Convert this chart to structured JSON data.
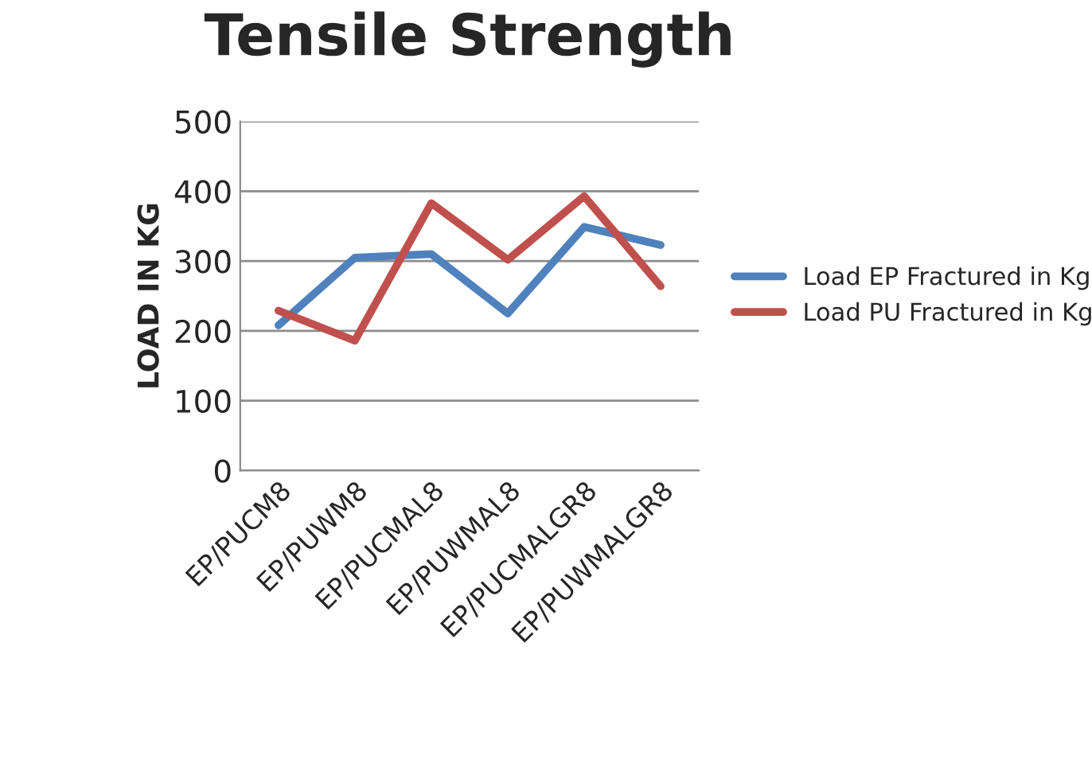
{
  "chart_data": {
    "type": "line",
    "title": "Tensile Strength",
    "ylabel": "LOAD IN KG",
    "categories": [
      "EP/PUCM8",
      "EP/PUWM8",
      "EP/PUCMAL8",
      "EP/PUWMAL8",
      "EP/PUCMALGR8",
      "EP/PUWMALGR8"
    ],
    "series": [
      {
        "name": "Load EP Fractured in Kg",
        "color": "#4f81bd",
        "values": [
          208,
          305,
          310,
          225,
          349,
          323
        ]
      },
      {
        "name": "Load PU Fractured in Kg",
        "color": "#c0504d",
        "values": [
          229,
          186,
          383,
          302,
          393,
          264
        ]
      }
    ],
    "ylim": [
      0,
      500
    ],
    "yticks": [
      0,
      100,
      200,
      300,
      400,
      500
    ],
    "grid": "y",
    "legend": "right",
    "marker": "none",
    "line_style": "solid"
  }
}
